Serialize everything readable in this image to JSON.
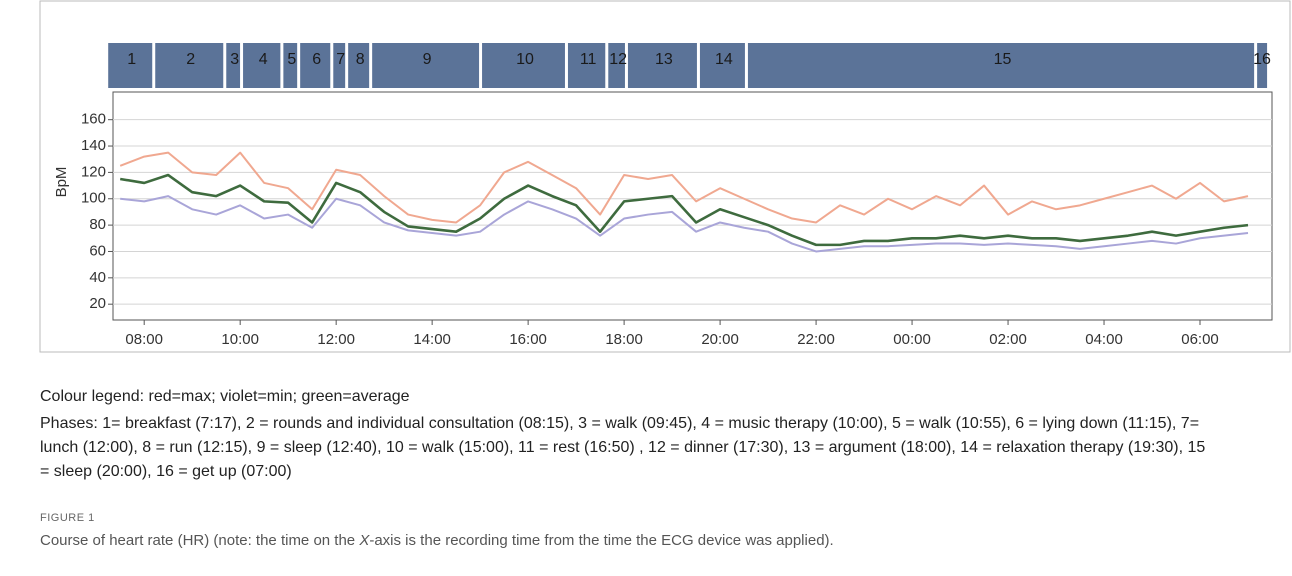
{
  "caption": {
    "legend": "Colour legend: red=max; violet=min; green=average",
    "phases": "Phases: 1= breakfast (7:17), 2 = rounds and individual consultation (08:15), 3 = walk (09:45), 4 = music therapy (10:00), 5 = walk (10:55), 6 = lying down (11:15), 7= lunch (12:00), 8 = run (12:15), 9 = sleep (12:40), 10 = walk (15:00), 11 = rest (16:50) , 12 = dinner (17:30), 13 = argument (18:00), 14 = relaxation therapy (19:30), 15 = sleep (20:00), 16 = get up (07:00)",
    "figure_label": "FIGURE 1",
    "figure_caption": [
      "Course of heart rate (HR) (note: the time on the ",
      "X",
      "-axis is the recording time from the time the ECG device was applied)."
    ]
  },
  "chart_data": {
    "type": "line",
    "ylabel": "BpM",
    "x": [
      7.5,
      8,
      8.5,
      9,
      9.5,
      10,
      10.5,
      11,
      11.5,
      12,
      12.5,
      13,
      13.5,
      14,
      14.5,
      15,
      15.5,
      16,
      16.5,
      17,
      17.5,
      18,
      18.5,
      19,
      19.5,
      20,
      20.5,
      21,
      21.5,
      22,
      22.5,
      23,
      23.5,
      24,
      24.5,
      25,
      25.5,
      26,
      26.5,
      27,
      27.5,
      28,
      28.5,
      29,
      29.5,
      30,
      30.5,
      31
    ],
    "series": [
      {
        "name": "max",
        "color": "#f0a890",
        "values": [
          125,
          132,
          135,
          120,
          118,
          135,
          112,
          108,
          92,
          122,
          118,
          102,
          88,
          84,
          82,
          95,
          120,
          128,
          118,
          108,
          88,
          118,
          115,
          118,
          98,
          108,
          100,
          92,
          85,
          82,
          95,
          88,
          100,
          92,
          102,
          95,
          110,
          88,
          98,
          92,
          95,
          100,
          105,
          110,
          100,
          112,
          98,
          102
        ]
      },
      {
        "name": "min",
        "color": "#a9a5d8",
        "values": [
          100,
          98,
          102,
          92,
          88,
          95,
          85,
          88,
          78,
          100,
          95,
          82,
          76,
          74,
          72,
          75,
          88,
          98,
          92,
          85,
          72,
          85,
          88,
          90,
          75,
          82,
          78,
          75,
          66,
          60,
          62,
          64,
          64,
          65,
          66,
          66,
          65,
          66,
          65,
          64,
          62,
          64,
          66,
          68,
          66,
          70,
          72,
          74
        ]
      },
      {
        "name": "average",
        "color": "#3e6b3e",
        "values": [
          115,
          112,
          118,
          105,
          102,
          110,
          98,
          97,
          82,
          112,
          105,
          90,
          79,
          77,
          75,
          85,
          100,
          110,
          102,
          95,
          75,
          98,
          100,
          102,
          82,
          92,
          86,
          80,
          72,
          65,
          65,
          68,
          68,
          70,
          70,
          72,
          70,
          72,
          70,
          70,
          68,
          70,
          72,
          75,
          72,
          75,
          78,
          80
        ]
      }
    ],
    "xlim": [
      7.35,
      31.5
    ],
    "ylim": [
      8,
      181
    ],
    "xticks": [
      {
        "value": 8,
        "label": "08:00"
      },
      {
        "value": 10,
        "label": "10:00"
      },
      {
        "value": 12,
        "label": "12:00"
      },
      {
        "value": 14,
        "label": "14:00"
      },
      {
        "value": 16,
        "label": "16:00"
      },
      {
        "value": 18,
        "label": "18:00"
      },
      {
        "value": 20,
        "label": "20:00"
      },
      {
        "value": 22,
        "label": "22:00"
      },
      {
        "value": 24,
        "label": "00:00"
      },
      {
        "value": 26,
        "label": "02:00"
      },
      {
        "value": 28,
        "label": "04:00"
      },
      {
        "value": 30,
        "label": "06:00"
      }
    ],
    "yticks": [
      20,
      40,
      60,
      80,
      100,
      120,
      140,
      160
    ],
    "grid": true,
    "phases": [
      {
        "label": "1",
        "start": 7.25
      },
      {
        "label": "2",
        "start": 8.23
      },
      {
        "label": "3",
        "start": 9.71
      },
      {
        "label": "4",
        "start": 10.06
      },
      {
        "label": "5",
        "start": 10.9
      },
      {
        "label": "6",
        "start": 11.25
      },
      {
        "label": "7",
        "start": 11.94
      },
      {
        "label": "8",
        "start": 12.25
      },
      {
        "label": "9",
        "start": 12.75
      },
      {
        "label": "10",
        "start": 15.04
      },
      {
        "label": "11",
        "start": 16.83
      },
      {
        "label": "12",
        "start": 17.67
      },
      {
        "label": "13",
        "start": 18.08
      },
      {
        "label": "14",
        "start": 19.58
      },
      {
        "label": "15",
        "start": 20.58
      },
      {
        "label": "16",
        "start": 31.19
      }
    ],
    "phases_end": 31.46
  }
}
